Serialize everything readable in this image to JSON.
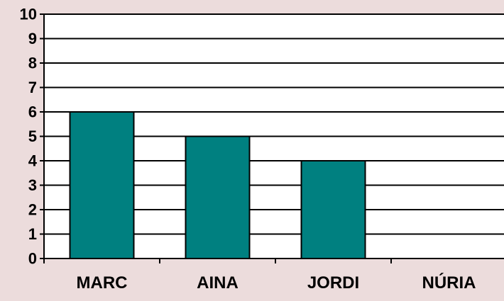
{
  "chart_data": {
    "type": "bar",
    "categories": [
      "MARC",
      "AINA",
      "JORDI",
      "NÚRIA"
    ],
    "values": [
      6,
      5,
      4,
      0
    ],
    "title": "",
    "xlabel": "",
    "ylabel": "",
    "ylim": [
      0,
      10
    ],
    "yticks": [
      "0",
      "1",
      "2",
      "3",
      "4",
      "5",
      "6",
      "7",
      "8",
      "9",
      "10"
    ],
    "grid": true,
    "legend": "none",
    "bar_color": "#008080",
    "plot_background": "#ffffff",
    "page_background": "#ecdcdc"
  }
}
